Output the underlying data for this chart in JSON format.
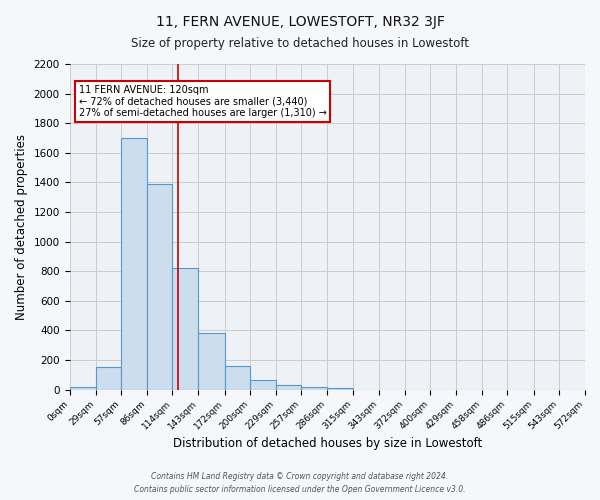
{
  "title_line1": "11, FERN AVENUE, LOWESTOFT, NR32 3JF",
  "title_line2": "Size of property relative to detached houses in Lowestoft",
  "xlabel": "Distribution of detached houses by size in Lowestoft",
  "ylabel": "Number of detached properties",
  "bin_edges": [
    0,
    29,
    57,
    86,
    114,
    143,
    172,
    200,
    229,
    257,
    286,
    315,
    343,
    372,
    400,
    429,
    458,
    486,
    515,
    543,
    572
  ],
  "bar_heights": [
    20,
    155,
    1700,
    1390,
    825,
    380,
    160,
    65,
    30,
    20,
    10,
    0,
    0,
    0,
    0,
    0,
    0,
    0,
    0,
    0
  ],
  "bar_face_color": "#ccdded",
  "bar_edge_color": "#5599cc",
  "property_size": 120,
  "vline_color": "#cc0000",
  "annotation_text": "11 FERN AVENUE: 120sqm\n← 72% of detached houses are smaller (3,440)\n27% of semi-detached houses are larger (1,310) →",
  "annotation_box_color": "#ffffff",
  "annotation_box_edge_color": "#cc0000",
  "ylim": [
    0,
    2200
  ],
  "yticks": [
    0,
    200,
    400,
    600,
    800,
    1000,
    1200,
    1400,
    1600,
    1800,
    2000,
    2200
  ],
  "grid_color": "#cccccc",
  "bg_color": "#eef2f7",
  "fig_bg_color": "#f5f7fa",
  "footer_line1": "Contains HM Land Registry data © Crown copyright and database right 2024.",
  "footer_line2": "Contains public sector information licensed under the Open Government Licence v3.0."
}
